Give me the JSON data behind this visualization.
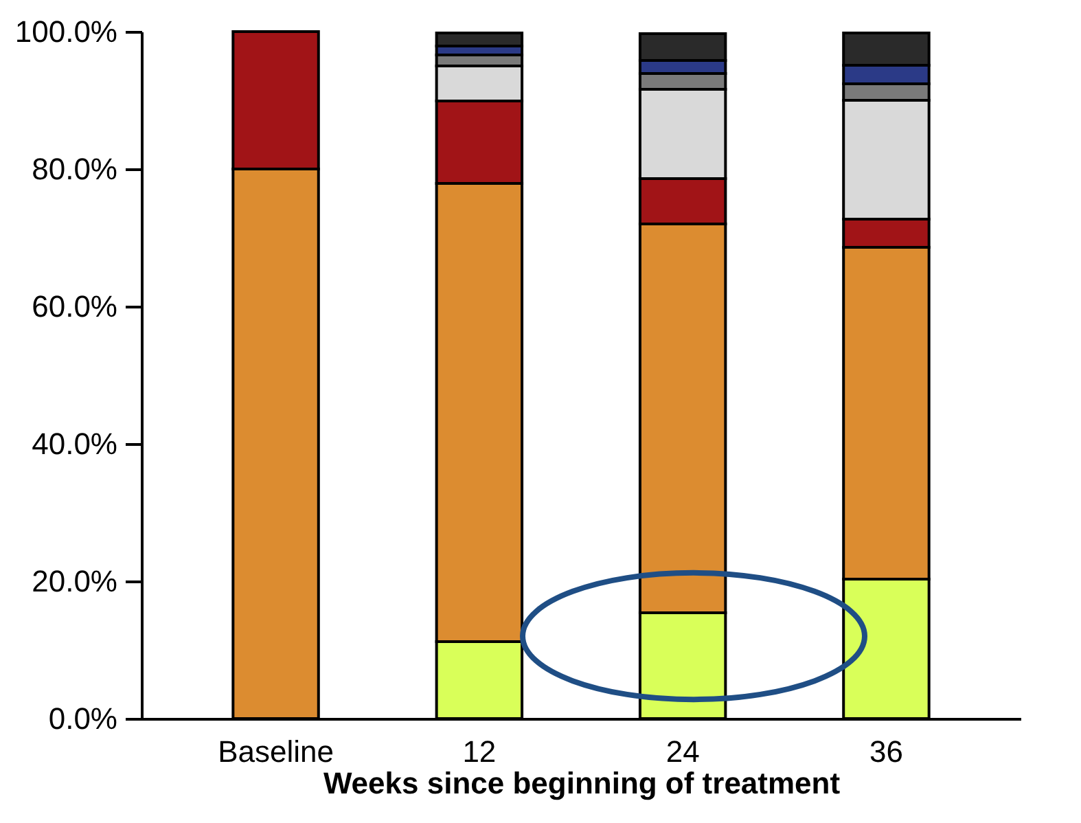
{
  "chart_data": {
    "type": "bar",
    "stacked": true,
    "xlabel": "Weeks since beginning of treatment",
    "categories": [
      "Baseline",
      "12",
      "24",
      "36"
    ],
    "series": [
      {
        "color": "#d9ff59",
        "values": [
          null,
          11.2,
          15.4,
          20.3
        ]
      },
      {
        "color": "#dc8c30",
        "values": [
          80,
          66.7,
          56.6,
          48.3
        ]
      },
      {
        "color": "#a11417",
        "values": [
          20,
          12.0,
          6.6,
          4.1
        ]
      },
      {
        "color": "#d9d9d9",
        "values": [
          null,
          5.1,
          13.0,
          17.3
        ]
      },
      {
        "color": "#7a7a7a",
        "values": [
          null,
          1.6,
          2.3,
          2.4
        ]
      },
      {
        "color": "#2b3a87",
        "values": [
          null,
          1.3,
          1.9,
          2.7
        ]
      },
      {
        "color": "#2a2a2a",
        "values": [
          null,
          1.9,
          3.9,
          4.7
        ]
      }
    ],
    "ylim": [
      0,
      100
    ],
    "yticks": [
      {
        "value": 0,
        "label": "0.0%"
      },
      {
        "value": 20,
        "label": "20.0%"
      },
      {
        "value": 40,
        "label": "40.0%"
      },
      {
        "value": 60,
        "label": "60.0%"
      },
      {
        "value": 80,
        "label": "80.0%"
      },
      {
        "value": 100,
        "label": "100.0%"
      }
    ],
    "grid": false,
    "legend": false
  }
}
